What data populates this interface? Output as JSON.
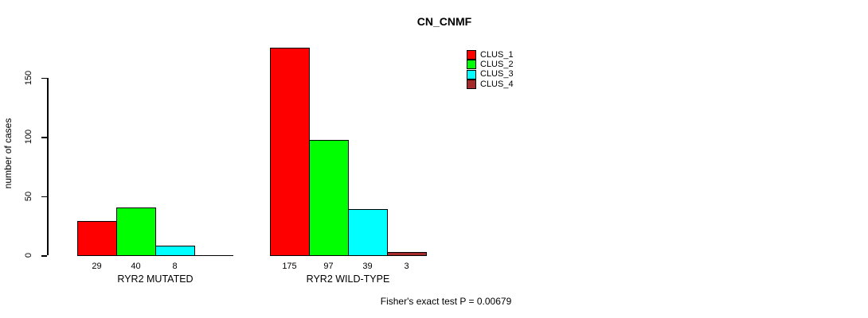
{
  "chart": {
    "title": "CN_CNMF",
    "ylabel": "number of cases",
    "footnote": "Fisher's exact test P = 0.00679"
  },
  "chart_data": {
    "type": "bar",
    "title": "CN_CNMF",
    "xlabel": "",
    "ylabel": "number of cases",
    "ylim": [
      0,
      180
    ],
    "yticks": [
      0,
      50,
      100,
      150
    ],
    "grid": false,
    "legend_position": "top-right",
    "groups": [
      "RYR2 MUTATED",
      "RYR2 WILD-TYPE"
    ],
    "series": [
      {
        "name": "CLUS_1",
        "color": "#FF0000",
        "values": [
          29,
          175
        ]
      },
      {
        "name": "CLUS_2",
        "color": "#00FF00",
        "values": [
          40,
          97
        ]
      },
      {
        "name": "CLUS_3",
        "color": "#00FFFF",
        "values": [
          8,
          39
        ]
      },
      {
        "name": "CLUS_4",
        "color": "#A52A2A",
        "values": [
          0,
          3
        ]
      }
    ],
    "bar_value_labels": [
      [
        "29",
        "40",
        "8",
        ""
      ],
      [
        "175",
        "97",
        "39",
        "3"
      ]
    ],
    "annotation": "Fisher's exact test P = 0.00679"
  }
}
